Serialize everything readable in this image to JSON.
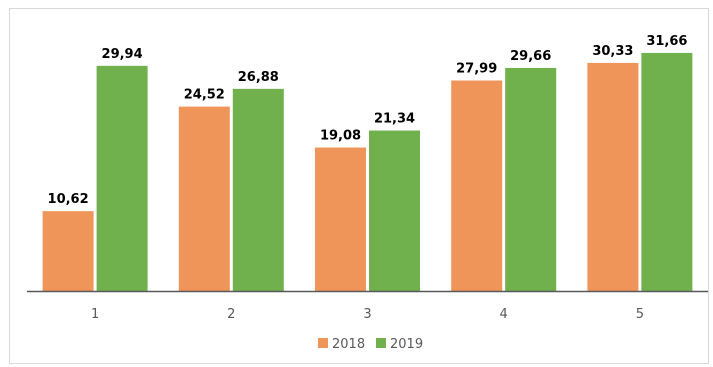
{
  "chart_data": {
    "type": "bar",
    "categories": [
      "1",
      "2",
      "3",
      "4",
      "5"
    ],
    "series": [
      {
        "name": "2018",
        "color": "#f0955a",
        "values": [
          10.62,
          24.52,
          19.08,
          27.99,
          30.33
        ],
        "labels": [
          "10,62",
          "24,52",
          "19,08",
          "27,99",
          "30,33"
        ]
      },
      {
        "name": "2019",
        "color": "#70b04d",
        "values": [
          29.94,
          26.88,
          21.34,
          29.66,
          31.66
        ],
        "labels": [
          "29,94",
          "26,88",
          "21,34",
          "29,66",
          "31,66"
        ]
      }
    ],
    "title": "",
    "xlabel": "",
    "ylabel": "",
    "ylim": [
      0,
      35
    ],
    "grid": false,
    "legend_position": "bottom"
  }
}
